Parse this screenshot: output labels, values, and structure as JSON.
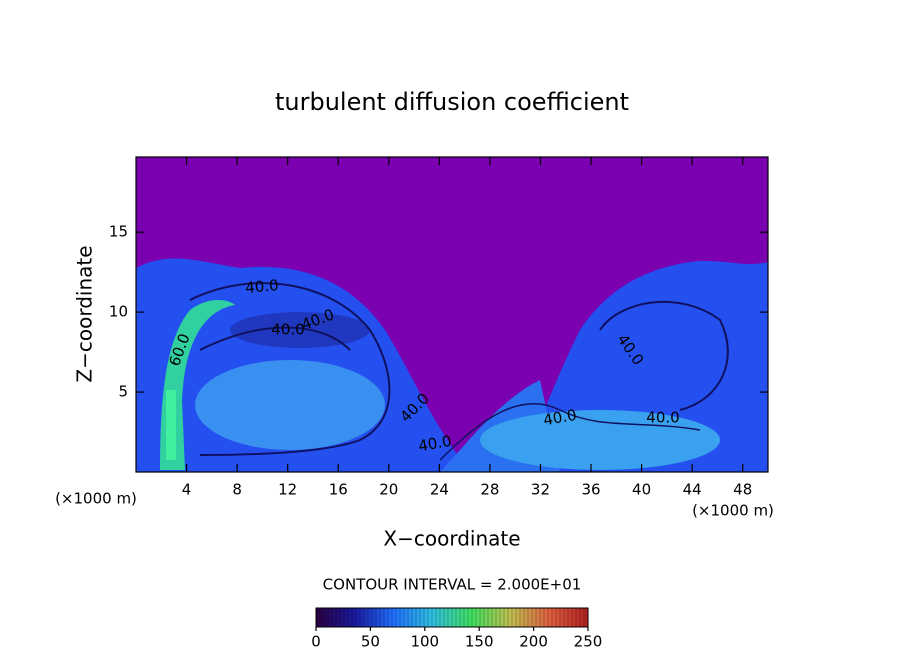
{
  "chart_data": {
    "type": "contour",
    "title": "turbulent diffusion coefficient",
    "xlabel": "X−coordinate",
    "ylabel": "Z−coordinate",
    "x_unit": "(×1000 m)",
    "x_unit_right": "(×1000 m)",
    "xlim": [
      0,
      50
    ],
    "ylim": [
      0,
      19.7
    ],
    "xticks": [
      4,
      8,
      12,
      16,
      20,
      24,
      28,
      32,
      36,
      40,
      44,
      48
    ],
    "yticks": [
      5,
      10,
      15
    ],
    "contour_interval": "CONTOUR INTERVAL = 2.000E+01",
    "contour_labels": [
      "40.0",
      "40.0",
      "40.0",
      "60.0",
      "40.0",
      "40.0",
      "40.0",
      "40.0",
      "40.0"
    ],
    "colorbar": {
      "lim": [
        0,
        250
      ],
      "ticks": [
        0,
        50,
        100,
        150,
        200,
        250
      ],
      "colors": [
        "#2a0040",
        "#1a1aa0",
        "#2070ff",
        "#30c0e0",
        "#40e060",
        "#c0c050",
        "#e06040",
        "#b02020"
      ]
    }
  }
}
